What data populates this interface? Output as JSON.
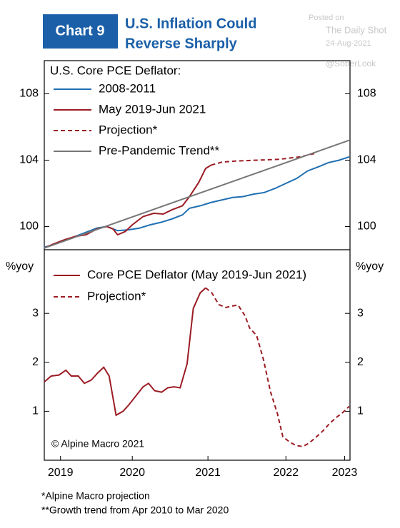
{
  "header": {
    "badge": "Chart 9",
    "title_lines": [
      "U.S. Inflation Could",
      "Reverse Sharply"
    ]
  },
  "watermark": [
    "Posted on",
    "The Daily Shot",
    "24-Aug-2021",
    "@SoberLook"
  ],
  "chart_data": [
    {
      "type": "line",
      "legend_title": "U.S. Core PCE Deflator:",
      "xlim": [
        2019.33,
        2023.29
      ],
      "ylim": [
        98.6,
        110
      ],
      "yticks": [
        100,
        104,
        108
      ],
      "series": [
        {
          "name": "2008-2011",
          "color": "#1f6fb2",
          "dashed": false,
          "x": [
            2019.33,
            2019.45,
            2019.59,
            2019.73,
            2019.87,
            2020.01,
            2020.14,
            2020.28,
            2020.42,
            2020.56,
            2020.7,
            2020.84,
            2020.98,
            2021.12,
            2021.21,
            2021.35,
            2021.49,
            2021.63,
            2021.77,
            2021.9,
            2022.04,
            2022.18,
            2022.32,
            2022.46,
            2022.6,
            2022.74,
            2022.88,
            2023.01,
            2023.15,
            2023.28
          ],
          "values": [
            98.75,
            98.9,
            99.15,
            99.4,
            99.65,
            99.9,
            100.0,
            99.75,
            99.8,
            99.9,
            100.1,
            100.25,
            100.45,
            100.7,
            101.1,
            101.25,
            101.45,
            101.6,
            101.75,
            101.8,
            101.95,
            102.05,
            102.3,
            102.6,
            102.9,
            103.35,
            103.6,
            103.85,
            104.0,
            104.2
          ]
        },
        {
          "name": "May 2019-Jun 2021",
          "color": "#9b1c24",
          "dashed": false,
          "x": [
            2019.33,
            2019.45,
            2019.59,
            2019.73,
            2019.87,
            2020.01,
            2020.14,
            2020.22,
            2020.28,
            2020.38,
            2020.47,
            2020.61,
            2020.75,
            2020.87,
            2020.98,
            2021.12,
            2021.21,
            2021.33,
            2021.42,
            2021.49
          ],
          "values": [
            98.7,
            98.95,
            99.2,
            99.4,
            99.5,
            99.85,
            100.0,
            99.85,
            99.5,
            99.7,
            100.1,
            100.6,
            100.8,
            100.75,
            101.0,
            101.25,
            101.8,
            102.65,
            103.5,
            103.7
          ]
        },
        {
          "name": "Projection*",
          "color": "#9b1c24",
          "dashed": true,
          "x": [
            2021.49,
            2021.63,
            2021.81,
            2022.09,
            2022.37,
            2022.64,
            2022.83
          ],
          "values": [
            103.7,
            103.88,
            103.95,
            104.0,
            104.05,
            104.2,
            104.4
          ]
        },
        {
          "name": "Pre-Pandemic Trend**",
          "color": "#777777",
          "dashed": false,
          "x": [
            2019.33,
            2023.28
          ],
          "values": [
            98.7,
            105.2
          ]
        }
      ]
    },
    {
      "type": "line",
      "y_label": "%yoy",
      "annotation": "© Alpine Macro 2021",
      "xlim": [
        2019.33,
        2023.29
      ],
      "ylim": [
        0,
        4.3
      ],
      "yticks": [
        1,
        2,
        3
      ],
      "xticks": [
        {
          "value": 2019.54,
          "label": "2019"
        },
        {
          "value": 2020.47,
          "label": "2020"
        },
        {
          "value": 2021.45,
          "label": "2021"
        },
        {
          "value": 2022.46,
          "label": "2022"
        },
        {
          "value": 2023.22,
          "label": "2023"
        }
      ],
      "series": [
        {
          "name": "Core PCE Deflator (May 2019-Jun 2021)",
          "color": "#9b1c24",
          "dashed": false,
          "x": [
            2019.33,
            2019.42,
            2019.52,
            2019.61,
            2019.68,
            2019.77,
            2019.85,
            2019.94,
            2020.02,
            2020.1,
            2020.17,
            2020.26,
            2020.35,
            2020.42,
            2020.51,
            2020.61,
            2020.68,
            2020.76,
            2020.85,
            2020.93,
            2021.01,
            2021.09,
            2021.18,
            2021.26,
            2021.35,
            2021.42
          ],
          "values": [
            1.6,
            1.72,
            1.74,
            1.84,
            1.72,
            1.72,
            1.57,
            1.64,
            1.78,
            1.9,
            1.72,
            0.92,
            1.0,
            1.12,
            1.3,
            1.5,
            1.57,
            1.42,
            1.39,
            1.48,
            1.5,
            1.48,
            1.97,
            3.1,
            3.42,
            3.52
          ]
        },
        {
          "name": "Projection*",
          "color": "#9b1c24",
          "dashed": true,
          "x": [
            2021.42,
            2021.5,
            2021.59,
            2021.68,
            2021.76,
            2021.84,
            2021.93,
            2021.99,
            2022.08,
            2022.17,
            2022.26,
            2022.35,
            2022.42,
            2022.51,
            2022.59,
            2022.68,
            2022.76,
            2022.85,
            2022.94,
            2023.02,
            2023.11,
            2023.2,
            2023.28
          ],
          "values": [
            3.52,
            3.42,
            3.18,
            3.12,
            3.15,
            3.17,
            2.95,
            2.7,
            2.55,
            2.05,
            1.4,
            0.95,
            0.48,
            0.37,
            0.3,
            0.28,
            0.35,
            0.47,
            0.6,
            0.74,
            0.87,
            0.98,
            1.1
          ]
        }
      ]
    }
  ],
  "footnotes": [
    "*Alpine Macro projection",
    "**Growth trend from Apr 2010 to Mar 2020"
  ]
}
